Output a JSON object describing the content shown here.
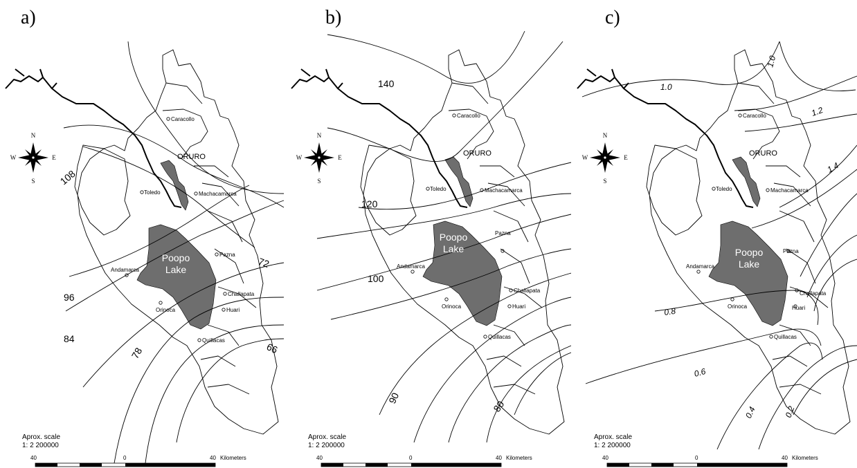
{
  "panels": [
    {
      "letter": "a)",
      "cities": {
        "caracollo": "Caracollo",
        "oruro": "ORURO",
        "toledo": "Toledo",
        "machacamarca": "Machacamarca",
        "pazna": "Pazna",
        "andamarca": "Andamarca",
        "challapata": "Challapata",
        "orinoca": "Orinoca",
        "huari": "Huari",
        "quillacas": "Quillacas"
      },
      "lake": {
        "line1": "Poopo",
        "line2": "Lake"
      },
      "isolines": [
        "108",
        "96",
        "84",
        "78",
        "72",
        "66"
      ]
    },
    {
      "letter": "b)",
      "cities": {
        "caracollo": "Caracollo",
        "oruro": "ORURO",
        "toledo": "Toledo",
        "machacamarca": "Machacamarca",
        "pazna": "Pazna",
        "andamarca": "Andamarca",
        "challapata": "Challapata",
        "orinoca": "Orinoca",
        "huari": "Huari",
        "quillacas": "Quillacas"
      },
      "lake": {
        "line1": "Poopo",
        "line2": "Lake"
      },
      "isolines": [
        "140",
        "120",
        "100",
        "90",
        "80"
      ]
    },
    {
      "letter": "c)",
      "cities": {
        "caracollo": "Caracollo",
        "oruro": "ORURO",
        "toledo": "Toledo",
        "machacamarca": "Machacamarca",
        "pazna": "Pazna",
        "andamarca": "Andamarca",
        "challapata": "Challapata",
        "orinoca": "Orinoca",
        "huari": "Huari",
        "quillacas": "Quillacas"
      },
      "lake": {
        "line1": "Poopo",
        "line2": "Lake"
      },
      "isolines": [
        "1.0",
        "1.0",
        "1.2",
        "1.4",
        "0.8",
        "0.6",
        "0.4",
        "0.2"
      ]
    }
  ],
  "compass": {
    "n": "N",
    "s": "S",
    "e": "E",
    "w": "W"
  },
  "scale": {
    "line1": "Aprox. scale",
    "line2": "1: 2 200000",
    "left": "40",
    "mid": "0",
    "right": "40",
    "unit": "Kilometers"
  }
}
